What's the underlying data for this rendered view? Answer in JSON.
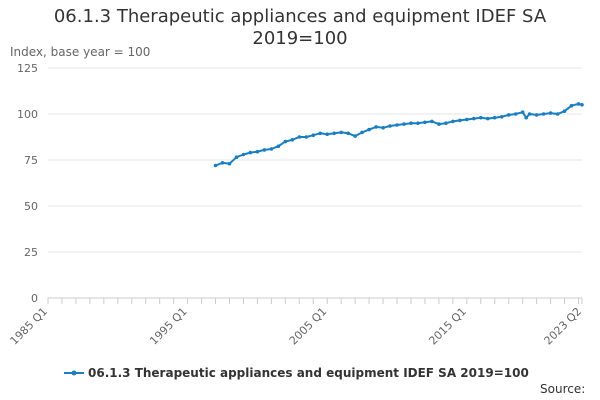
{
  "chart_data": {
    "type": "line",
    "title_line1": "06.1.3 Therapeutic appliances and equipment IDEF SA",
    "title_line2": "2019=100",
    "ylabel": "Index, base year = 100",
    "xlabel": "",
    "ylim": [
      0,
      125
    ],
    "yticks": [
      "0",
      "25",
      "50",
      "75",
      "100",
      "125"
    ],
    "xlim": [
      "1985 Q1",
      "2023 Q2"
    ],
    "xticks": [
      "1985 Q1",
      "1995 Q1",
      "2005 Q1",
      "2015 Q1",
      "2023 Q2"
    ],
    "grid": true,
    "legend_position": "bottom",
    "source_label": "Source:",
    "series": [
      {
        "name": "06.1.3 Therapeutic appliances and equipment IDEF SA 2019=100",
        "color": "#1a7fc2",
        "points": [
          [
            "1997 Q1",
            72.0
          ],
          [
            "1997 Q3",
            73.5
          ],
          [
            "1998 Q1",
            73.0
          ],
          [
            "1998 Q3",
            76.5
          ],
          [
            "1999 Q1",
            78.0
          ],
          [
            "1999 Q3",
            79.0
          ],
          [
            "2000 Q1",
            79.5
          ],
          [
            "2000 Q3",
            80.5
          ],
          [
            "2001 Q1",
            81.0
          ],
          [
            "2001 Q3",
            82.5
          ],
          [
            "2002 Q1",
            85.0
          ],
          [
            "2002 Q3",
            86.0
          ],
          [
            "2003 Q1",
            87.5
          ],
          [
            "2003 Q3",
            87.5
          ],
          [
            "2004 Q1",
            88.5
          ],
          [
            "2004 Q3",
            89.5
          ],
          [
            "2005 Q1",
            89.0
          ],
          [
            "2005 Q3",
            89.5
          ],
          [
            "2006 Q1",
            90.0
          ],
          [
            "2006 Q3",
            89.5
          ],
          [
            "2007 Q1",
            88.0
          ],
          [
            "2007 Q3",
            90.0
          ],
          [
            "2008 Q1",
            91.5
          ],
          [
            "2008 Q3",
            93.0
          ],
          [
            "2009 Q1",
            92.5
          ],
          [
            "2009 Q3",
            93.5
          ],
          [
            "2010 Q1",
            94.0
          ],
          [
            "2010 Q3",
            94.5
          ],
          [
            "2011 Q1",
            95.0
          ],
          [
            "2011 Q3",
            95.0
          ],
          [
            "2012 Q1",
            95.5
          ],
          [
            "2012 Q3",
            96.0
          ],
          [
            "2013 Q1",
            94.5
          ],
          [
            "2013 Q3",
            95.0
          ],
          [
            "2014 Q1",
            96.0
          ],
          [
            "2014 Q3",
            96.5
          ],
          [
            "2015 Q1",
            97.0
          ],
          [
            "2015 Q3",
            97.5
          ],
          [
            "2016 Q1",
            98.0
          ],
          [
            "2016 Q3",
            97.5
          ],
          [
            "2017 Q1",
            98.0
          ],
          [
            "2017 Q3",
            98.5
          ],
          [
            "2018 Q1",
            99.5
          ],
          [
            "2018 Q3",
            100.0
          ],
          [
            "2019 Q1",
            101.0
          ],
          [
            "2019 Q2",
            98.0
          ],
          [
            "2019 Q3",
            100.0
          ],
          [
            "2020 Q1",
            99.5
          ],
          [
            "2020 Q3",
            100.0
          ],
          [
            "2021 Q1",
            100.5
          ],
          [
            "2021 Q3",
            100.0
          ],
          [
            "2022 Q1",
            101.5
          ],
          [
            "2022 Q3",
            104.5
          ],
          [
            "2023 Q1",
            105.5
          ],
          [
            "2023 Q2",
            105.0
          ]
        ]
      }
    ]
  }
}
